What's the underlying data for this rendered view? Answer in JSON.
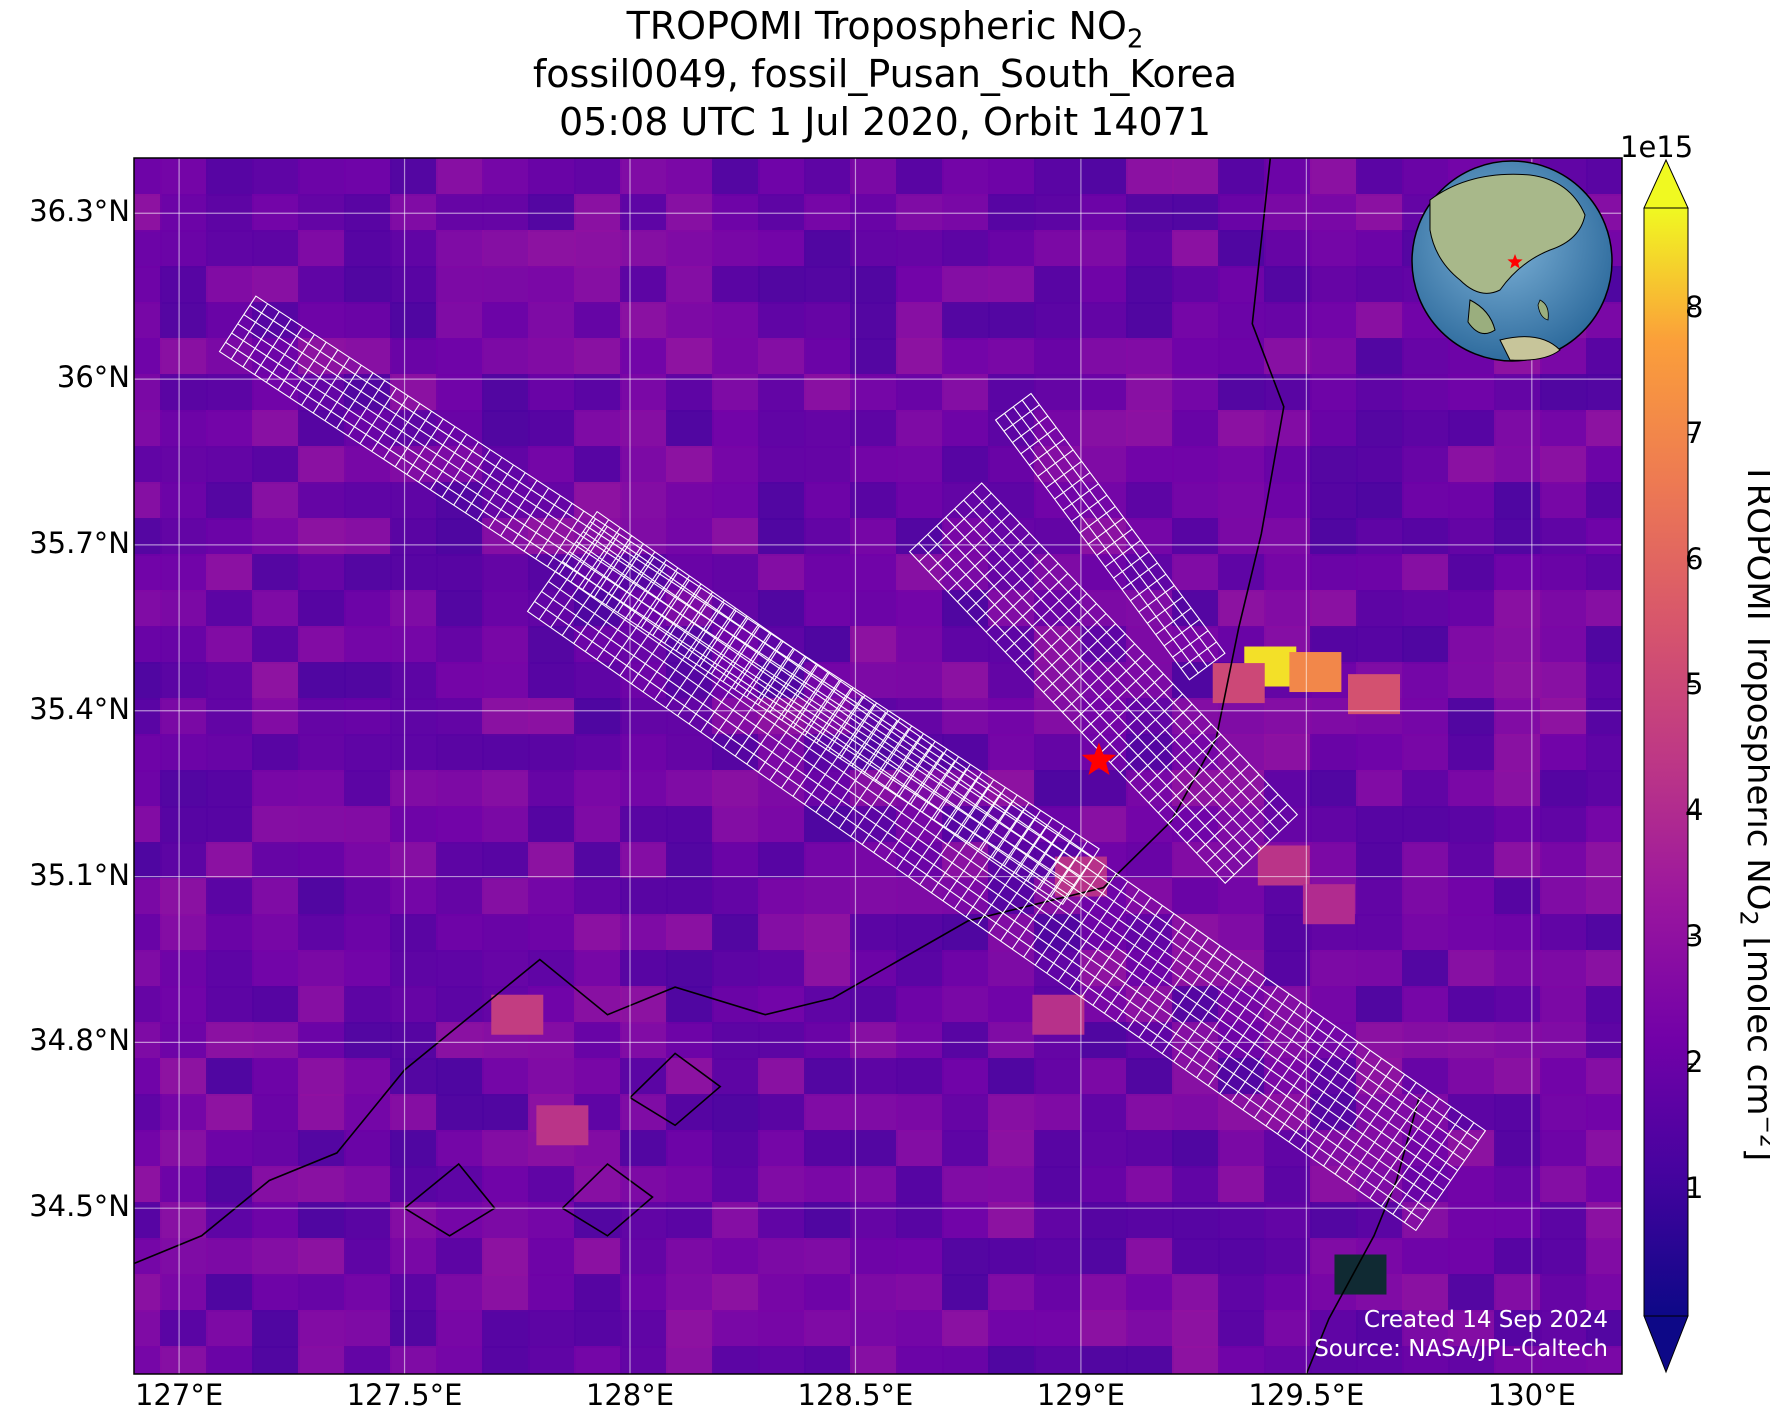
{
  "title": {
    "line1_prefix": "TROPOMI Tropospheric NO",
    "line1_sub": "2",
    "line2": "fossil0049, fossil_Pusan_South_Korea",
    "line3": "05:08 UTC 1 Jul 2020, Orbit 14071"
  },
  "map": {
    "lon_range": [
      126.9,
      130.2
    ],
    "lat_range": [
      34.2,
      36.4
    ],
    "x_ticks": [
      {
        "value": 127.0,
        "label": "127°E"
      },
      {
        "value": 127.5,
        "label": "127.5°E"
      },
      {
        "value": 128.0,
        "label": "128°E"
      },
      {
        "value": 128.5,
        "label": "128.5°E"
      },
      {
        "value": 129.0,
        "label": "129°E"
      },
      {
        "value": 129.5,
        "label": "129.5°E"
      },
      {
        "value": 130.0,
        "label": "130°E"
      }
    ],
    "y_ticks": [
      {
        "value": 36.3,
        "label": "36.3°N"
      },
      {
        "value": 36.0,
        "label": "36°N"
      },
      {
        "value": 35.7,
        "label": "35.7°N"
      },
      {
        "value": 35.4,
        "label": "35.4°N"
      },
      {
        "value": 35.1,
        "label": "35.1°N"
      },
      {
        "value": 34.8,
        "label": "34.8°N"
      },
      {
        "value": 34.5,
        "label": "34.5°N"
      }
    ],
    "grid": true,
    "background_color": "#6a19a8",
    "target_marker": {
      "lon": 129.04,
      "lat": 35.31,
      "symbol": "star",
      "color": "#ff0000"
    },
    "hotspots": [
      {
        "lon": 129.42,
        "lat": 35.48,
        "no2": 8.5
      },
      {
        "lon": 129.52,
        "lat": 35.47,
        "no2": 7.0
      },
      {
        "lon": 129.65,
        "lat": 35.43,
        "no2": 5.3
      },
      {
        "lon": 129.35,
        "lat": 35.45,
        "no2": 5.0
      },
      {
        "lon": 129.45,
        "lat": 35.12,
        "no2": 4.3
      },
      {
        "lon": 129.55,
        "lat": 35.05,
        "no2": 4.0
      },
      {
        "lon": 127.75,
        "lat": 34.85,
        "no2": 4.6
      },
      {
        "lon": 127.85,
        "lat": 34.65,
        "no2": 4.3
      },
      {
        "lon": 128.95,
        "lat": 34.85,
        "no2": 4.2
      },
      {
        "lon": 129.0,
        "lat": 35.1,
        "no2": 4.2
      },
      {
        "lon": 129.62,
        "lat": 34.38,
        "no2": 0.0
      }
    ],
    "oco_target_swaths": [
      {
        "start": [
          127.13,
          36.1
        ],
        "end": [
          129.0,
          35.1
        ],
        "width_deg": 0.12
      },
      {
        "start": [
          127.85,
          35.67
        ],
        "end": [
          129.82,
          34.55
        ],
        "width_deg": 0.22
      },
      {
        "start": [
          128.7,
          35.75
        ],
        "end": [
          129.4,
          35.15
        ],
        "width_deg": 0.18
      },
      {
        "start": [
          128.85,
          35.95
        ],
        "end": [
          129.28,
          35.48
        ],
        "width_deg": 0.08
      }
    ],
    "inset_globe": {
      "center_lon": 129.0,
      "center_lat": 35.3,
      "marker_color": "#ff0000"
    }
  },
  "colorbar": {
    "label_prefix": "TROPOMI Tropospheric NO",
    "label_sub": "2",
    "label_units": " [molec cm",
    "label_exp": "−2",
    "label_end": "]",
    "multiplier": "1e15",
    "min": 0,
    "max": 8.8,
    "ticks": [
      {
        "value": 1,
        "label": "1"
      },
      {
        "value": 2,
        "label": "2"
      },
      {
        "value": 3,
        "label": "3"
      },
      {
        "value": 4,
        "label": "4"
      },
      {
        "value": 5,
        "label": "5"
      },
      {
        "value": 6,
        "label": "6"
      },
      {
        "value": 7,
        "label": "7"
      },
      {
        "value": 8,
        "label": "8"
      }
    ],
    "colormap": "plasma",
    "extend": "both"
  },
  "credit": {
    "created": "Created 14 Sep 2024",
    "source": "Source: NASA/JPL-Caltech"
  }
}
